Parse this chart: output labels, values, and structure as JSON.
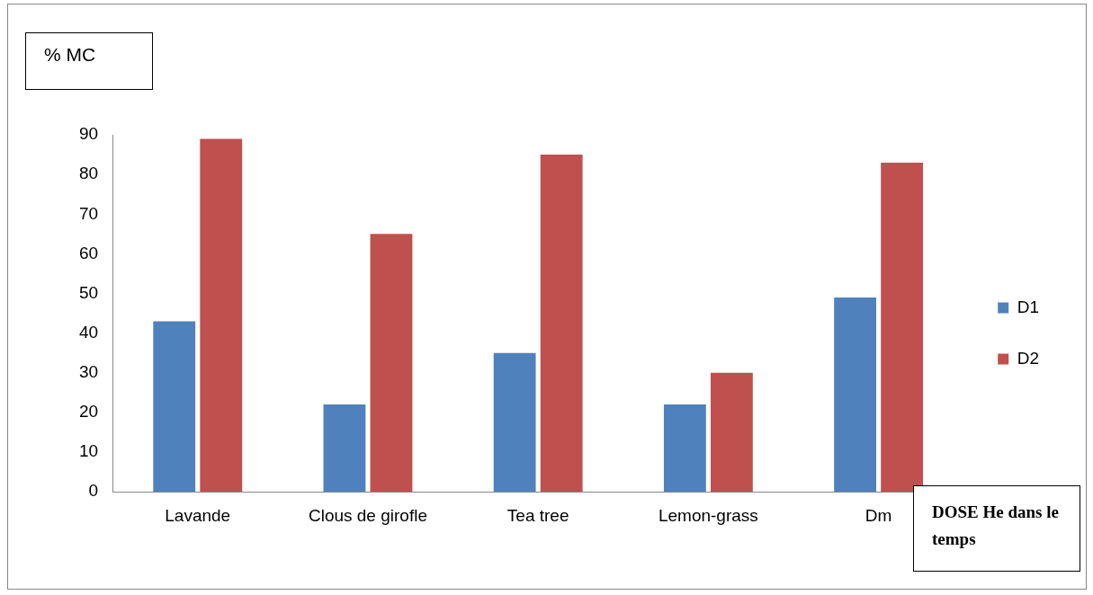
{
  "chart_data": {
    "type": "bar",
    "ylabel": "% MC",
    "xlabel": "DOSE He dans le temps",
    "categories": [
      "Lavande",
      "Clous de girofle",
      "Tea tree",
      "Lemon-grass",
      "Dm"
    ],
    "series": [
      {
        "name": "D1",
        "color": "#4f81bd",
        "values": [
          43,
          22,
          35,
          22,
          49
        ]
      },
      {
        "name": "D2",
        "color": "#c0504d",
        "values": [
          89,
          65,
          85,
          30,
          83
        ]
      }
    ],
    "ylim": [
      0,
      90
    ],
    "yticks": [
      0,
      10,
      20,
      30,
      40,
      50,
      60,
      70,
      80,
      90
    ],
    "legend": "right"
  }
}
